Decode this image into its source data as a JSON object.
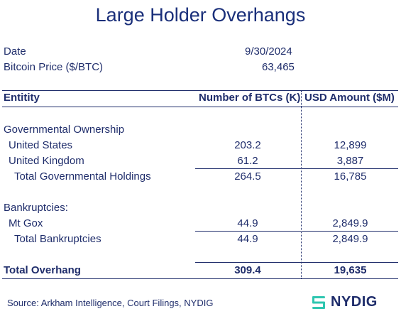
{
  "title": "Large Holder Overhangs",
  "meta": {
    "date_label": "Date",
    "date_value": "9/30/2024",
    "price_label": "Bitcoin Price ($/BTC)",
    "price_value": "63,465"
  },
  "table": {
    "headers": [
      "Entitity",
      "Number of BTCs (K)",
      "USD Amount ($M)"
    ],
    "governmental": {
      "section_label": "Governmental Ownership",
      "rows": [
        {
          "label": "United States",
          "btc": "203.2",
          "usd": "12,899"
        },
        {
          "label": "United Kingdom",
          "btc": "61.2",
          "usd": "3,887"
        }
      ],
      "total": {
        "label": "Total Governmental Holdings",
        "btc": "264.5",
        "usd": "16,785"
      }
    },
    "bankruptcies": {
      "section_label": "Bankruptcies:",
      "rows": [
        {
          "label": "Mt Gox",
          "btc": "44.9",
          "usd": "2,849.9"
        }
      ],
      "total": {
        "label": "Total Bankruptcies",
        "btc": "44.9",
        "usd": "2,849.9"
      }
    },
    "grand_total": {
      "label": "Total Overhang",
      "btc": "309.4",
      "usd": "19,635"
    }
  },
  "footer": {
    "source": "Source: Arkham Intelligence, Court Filings, NYDIG",
    "logo_text": "NYDIG"
  },
  "colors": {
    "text": "#1f2d6b",
    "title": "#1a2f7a",
    "logo_accent": "#2fc6b0"
  }
}
